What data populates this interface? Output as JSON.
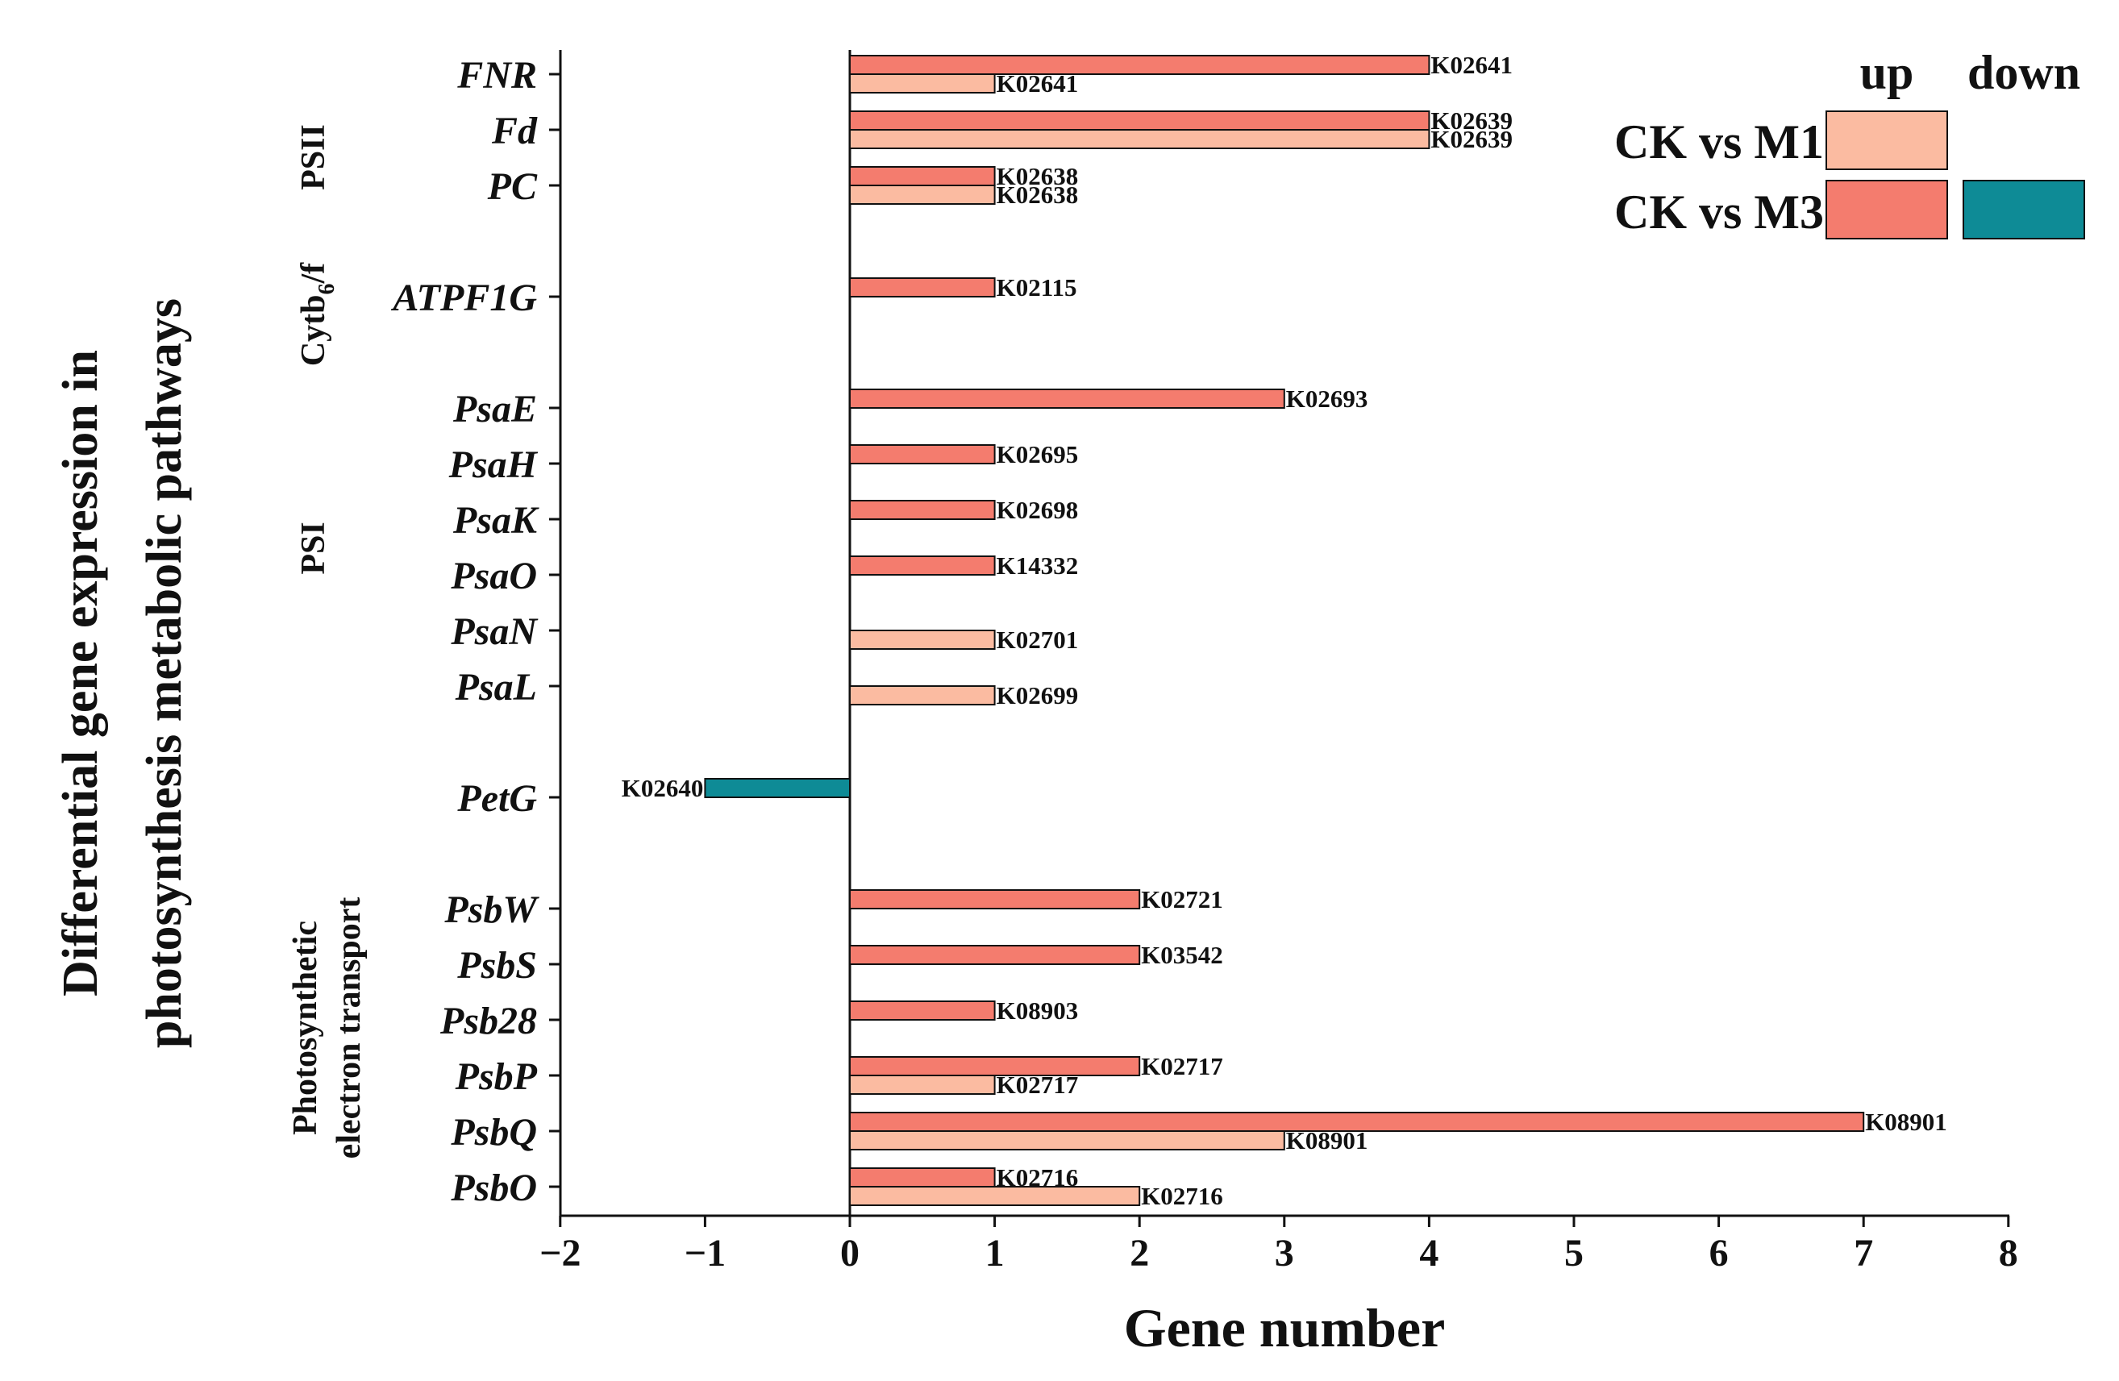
{
  "chart_data": {
    "type": "bar",
    "orientation": "horizontal",
    "xlabel": "Gene number",
    "ylabel_lines": [
      "Differential gene expression in",
      "photosynthesis metabolic pathways"
    ],
    "xlim": [
      -2,
      8
    ],
    "xticks": [
      "−2",
      "−1",
      "0",
      "1",
      "2",
      "3",
      "4",
      "5",
      "6",
      "7",
      "8"
    ],
    "genes": [
      "FNR",
      "Fd",
      "PC",
      "ATPF1G",
      "PsaE",
      "PsaH",
      "PsaK",
      "PsaO",
      "PsaN",
      "PsaL",
      "PetG",
      "PsbW",
      "PsbS",
      "Psb28",
      "PsbP",
      "PsbQ",
      "PsbO"
    ],
    "groups": [
      {
        "label": "PSII"
      },
      {
        "label": "Cytb",
        "sub": "6",
        "suffix": "/f"
      },
      {
        "label": "PSI"
      },
      {
        "label_lines": [
          "Photosynthetic",
          "electron transport"
        ]
      }
    ],
    "series": [
      {
        "name": "CK vs M3 up",
        "color": "#f47c6e",
        "points": [
          {
            "gene": "FNR",
            "value": 4,
            "label": "K02641"
          },
          {
            "gene": "Fd",
            "value": 4,
            "label": "K02639"
          },
          {
            "gene": "PC",
            "value": 1,
            "label": "K02638"
          },
          {
            "gene": "ATPF1G",
            "value": 1,
            "label": "K02115"
          },
          {
            "gene": "PsaE",
            "value": 3,
            "label": "K02693"
          },
          {
            "gene": "PsaH",
            "value": 1,
            "label": "K02695"
          },
          {
            "gene": "PsaK",
            "value": 1,
            "label": "K02698"
          },
          {
            "gene": "PsaO",
            "value": 1,
            "label": "K14332"
          },
          {
            "gene": "PsbW",
            "value": 2,
            "label": "K02721"
          },
          {
            "gene": "PsbS",
            "value": 2,
            "label": "K03542"
          },
          {
            "gene": "Psb28",
            "value": 1,
            "label": "K08903"
          },
          {
            "gene": "PsbP",
            "value": 2,
            "label": "K02717"
          },
          {
            "gene": "PsbQ",
            "value": 7,
            "label": "K08901"
          },
          {
            "gene": "PsbO",
            "value": 1,
            "label": "K02716"
          }
        ]
      },
      {
        "name": "CK vs M1 up",
        "color": "#fbbba1",
        "points": [
          {
            "gene": "FNR",
            "value": 1,
            "label": "K02641"
          },
          {
            "gene": "Fd",
            "value": 4,
            "label": "K02639"
          },
          {
            "gene": "PC",
            "value": 1,
            "label": "K02638"
          },
          {
            "gene": "PsaN",
            "value": 1,
            "label": "K02701"
          },
          {
            "gene": "PsaL",
            "value": 1,
            "label": "K02699"
          },
          {
            "gene": "PsbP",
            "value": 1,
            "label": "K02717"
          },
          {
            "gene": "PsbQ",
            "value": 3,
            "label": "K08901"
          },
          {
            "gene": "PsbO",
            "value": 2,
            "label": "K02716"
          }
        ]
      },
      {
        "name": "CK vs M3 down",
        "color": "#0e8b96",
        "points": [
          {
            "gene": "PetG",
            "value": -1,
            "label": "K02640"
          }
        ]
      }
    ],
    "legend": {
      "col_up": "up",
      "col_down": "down",
      "row1": "CK vs M1",
      "row2": "CK vs M3",
      "colors": {
        "m1_up": "#fbbba1",
        "m3_up": "#f47c6e",
        "m3_down": "#0e8b96"
      }
    }
  }
}
